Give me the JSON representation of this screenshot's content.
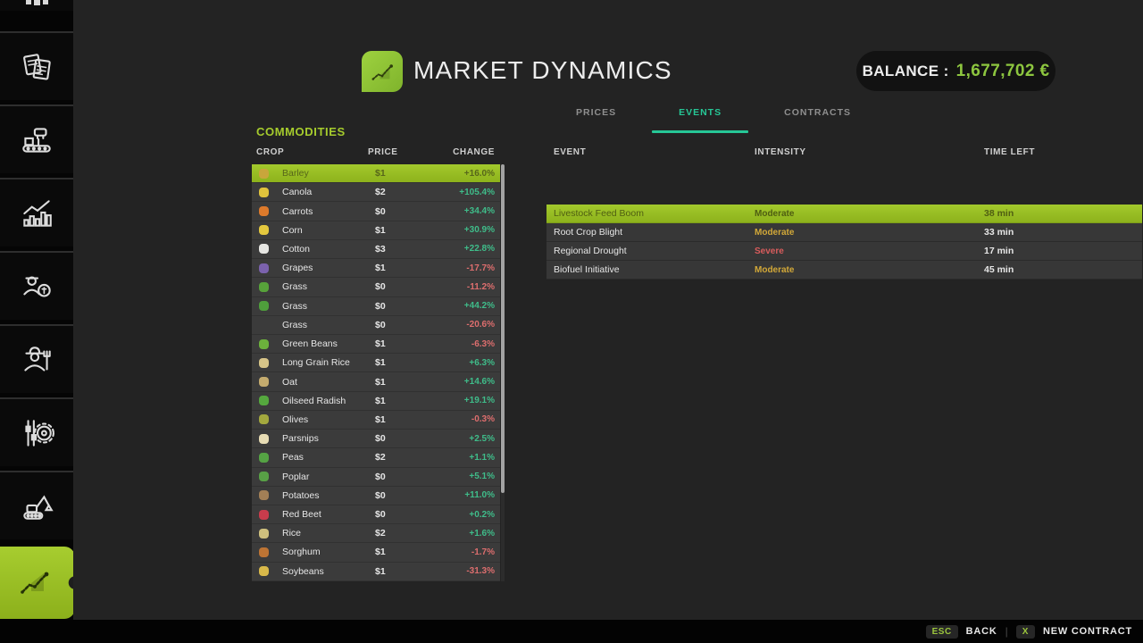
{
  "header": {
    "title": "MARKET DYNAMICS",
    "balance_label": "BALANCE :",
    "balance_value": "1,677,702 €",
    "logo_icon": "rising-chart-leaf",
    "battery_icon": "battery"
  },
  "tabs": [
    {
      "label": "PRICES",
      "active": false
    },
    {
      "label": "EVENTS",
      "active": true
    },
    {
      "label": "CONTRACTS",
      "active": false
    }
  ],
  "sidebar": {
    "items": [
      "partial-top-icon",
      "documents-icon",
      "production-icon",
      "statistics-icon",
      "finances-icon",
      "farmer-icon",
      "settings-icon",
      "excavator-icon",
      "market-dynamics-icon"
    ],
    "active_item": "market-dynamics-icon"
  },
  "commodities": {
    "section_title": "COMMODITIES",
    "columns": [
      "CROP",
      "PRICE",
      "CHANGE"
    ],
    "rows": [
      {
        "crop": "Barley",
        "price": "$1",
        "change": "+16.0%",
        "direction": "up",
        "icon_color": "#c9a63b",
        "selected": true
      },
      {
        "crop": "Canola",
        "price": "$2",
        "change": "+105.4%",
        "direction": "up",
        "icon_color": "#e0c33c",
        "selected": false
      },
      {
        "crop": "Carrots",
        "price": "$0",
        "change": "+34.4%",
        "direction": "up",
        "icon_color": "#dd7a2b",
        "selected": false
      },
      {
        "crop": "Corn",
        "price": "$1",
        "change": "+30.9%",
        "direction": "up",
        "icon_color": "#e4c83e",
        "selected": false
      },
      {
        "crop": "Cotton",
        "price": "$3",
        "change": "+22.8%",
        "direction": "up",
        "icon_color": "#e6e6e2",
        "selected": false
      },
      {
        "crop": "Grapes",
        "price": "$1",
        "change": "-17.7%",
        "direction": "down",
        "icon_color": "#7b62ad",
        "selected": false
      },
      {
        "crop": "Grass",
        "price": "$0",
        "change": "-11.2%",
        "direction": "down",
        "icon_color": "#57a23a",
        "selected": false
      },
      {
        "crop": "Grass",
        "price": "$0",
        "change": "+44.2%",
        "direction": "up",
        "icon_color": "#4f9e3c",
        "selected": false
      },
      {
        "crop": "Grass",
        "price": "$0",
        "change": "-20.6%",
        "direction": "down",
        "icon_color": null,
        "selected": false
      },
      {
        "crop": "Green Beans",
        "price": "$1",
        "change": "-6.3%",
        "direction": "down",
        "icon_color": "#6cb13c",
        "selected": false
      },
      {
        "crop": "Long Grain Rice",
        "price": "$1",
        "change": "+6.3%",
        "direction": "up",
        "icon_color": "#d6c488",
        "selected": false
      },
      {
        "crop": "Oat",
        "price": "$1",
        "change": "+14.6%",
        "direction": "up",
        "icon_color": "#c4ab6e",
        "selected": false
      },
      {
        "crop": "Oilseed Radish",
        "price": "$1",
        "change": "+19.1%",
        "direction": "up",
        "icon_color": "#55a83e",
        "selected": false
      },
      {
        "crop": "Olives",
        "price": "$1",
        "change": "-0.3%",
        "direction": "down",
        "icon_color": "#a3a83e",
        "selected": false
      },
      {
        "crop": "Parsnips",
        "price": "$0",
        "change": "+2.5%",
        "direction": "up",
        "icon_color": "#e7dcb4",
        "selected": false
      },
      {
        "crop": "Peas",
        "price": "$2",
        "change": "+1.1%",
        "direction": "up",
        "icon_color": "#55a344",
        "selected": false
      },
      {
        "crop": "Poplar",
        "price": "$0",
        "change": "+5.1%",
        "direction": "up",
        "icon_color": "#58a046",
        "selected": false
      },
      {
        "crop": "Potatoes",
        "price": "$0",
        "change": "+11.0%",
        "direction": "up",
        "icon_color": "#a27f56",
        "selected": false
      },
      {
        "crop": "Red Beet",
        "price": "$0",
        "change": "+0.2%",
        "direction": "up",
        "icon_color": "#c93c4c",
        "selected": false
      },
      {
        "crop": "Rice",
        "price": "$2",
        "change": "+1.6%",
        "direction": "up",
        "icon_color": "#cfc07e",
        "selected": false
      },
      {
        "crop": "Sorghum",
        "price": "$1",
        "change": "-1.7%",
        "direction": "down",
        "icon_color": "#bd7434",
        "selected": false
      },
      {
        "crop": "Soybeans",
        "price": "$1",
        "change": "-31.3%",
        "direction": "down",
        "icon_color": "#d9b94a",
        "selected": false
      }
    ]
  },
  "events": {
    "columns": [
      "EVENT",
      "INTENSITY",
      "TIME LEFT"
    ],
    "rows": [
      {
        "event": "Livestock Feed Boom",
        "intensity": "Moderate",
        "time_left": "38 min",
        "level": "moderate",
        "selected": true
      },
      {
        "event": "Root Crop Blight",
        "intensity": "Moderate",
        "time_left": "33 min",
        "level": "moderate",
        "selected": false
      },
      {
        "event": "Regional Drought",
        "intensity": "Severe",
        "time_left": "17 min",
        "level": "severe",
        "selected": false
      },
      {
        "event": "Biofuel Initiative",
        "intensity": "Moderate",
        "time_left": "45 min",
        "level": "moderate",
        "selected": false
      }
    ]
  },
  "footer": {
    "back_key": "ESC",
    "back_label": "BACK",
    "divider": "|",
    "new_contract_key": "X",
    "new_contract_label": "NEW CONTRACT"
  },
  "colors": {
    "accent_lime": "#94bd1f",
    "accent_teal": "#26c796",
    "positive": "#3fbd8a",
    "negative": "#dd6e6e",
    "intensity_moderate": "#d2a838",
    "intensity_severe": "#d85c5c",
    "balance_value": "#8dc63f"
  }
}
